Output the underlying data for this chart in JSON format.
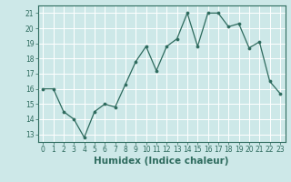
{
  "x": [
    0,
    1,
    2,
    3,
    4,
    5,
    6,
    7,
    8,
    9,
    10,
    11,
    12,
    13,
    14,
    15,
    16,
    17,
    18,
    19,
    20,
    21,
    22,
    23
  ],
  "y": [
    16.0,
    16.0,
    14.5,
    14.0,
    12.8,
    14.5,
    15.0,
    14.8,
    16.3,
    17.8,
    18.8,
    17.2,
    18.8,
    19.3,
    21.0,
    18.8,
    21.0,
    21.0,
    20.1,
    20.3,
    18.7,
    19.1,
    16.5,
    15.7
  ],
  "line_color": "#2e6b5e",
  "marker": "o",
  "markersize": 2.2,
  "linewidth": 0.9,
  "bg_color": "#cde8e8",
  "grid_color": "#ffffff",
  "xlabel": "Humidex (Indice chaleur)",
  "xlim": [
    -0.5,
    23.5
  ],
  "ylim": [
    12.5,
    21.5
  ],
  "yticks": [
    13,
    14,
    15,
    16,
    17,
    18,
    19,
    20,
    21
  ],
  "xticks": [
    0,
    1,
    2,
    3,
    4,
    5,
    6,
    7,
    8,
    9,
    10,
    11,
    12,
    13,
    14,
    15,
    16,
    17,
    18,
    19,
    20,
    21,
    22,
    23
  ],
  "tick_fontsize": 5.5,
  "xlabel_fontsize": 7.5,
  "tick_color": "#2e6b5e",
  "spine_color": "#2e6b5e",
  "axis_label_color": "#2e6b5e"
}
